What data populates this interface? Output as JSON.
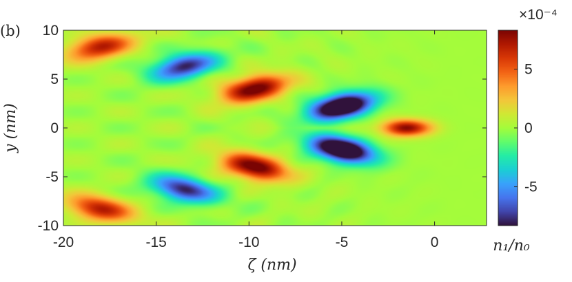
{
  "panel_label": "(b)",
  "colors": {
    "colormap": [
      "#30123b",
      "#4145ab",
      "#4675ed",
      "#39a2fc",
      "#1bcfd4",
      "#24eca6",
      "#61fc6c",
      "#a4fc3b",
      "#d1e834",
      "#f3c63a",
      "#fe9b2d",
      "#f36315",
      "#d93806",
      "#b11901",
      "#7a0403"
    ],
    "axis": "#262626"
  },
  "chart_data": {
    "type": "heatmap",
    "title": "",
    "xlabel": "ζ (nm)",
    "ylabel": "y (nm)",
    "xlim": [
      -20,
      2.8
    ],
    "ylim": [
      -10,
      10
    ],
    "x_ticks": [
      -20,
      -15,
      -10,
      -5,
      0
    ],
    "x_tick_labels": [
      "-20",
      "-15",
      "-10",
      "-5",
      "0"
    ],
    "y_ticks": [
      -10,
      -5,
      0,
      5,
      10
    ],
    "y_tick_labels": [
      "-10",
      "-5",
      "0",
      "5",
      "10"
    ],
    "colorbar": {
      "label": "n₁/n₀",
      "multiplier": "×10⁻⁴",
      "range": [
        -8.3,
        8.3
      ],
      "ticks": [
        -5,
        0,
        5
      ],
      "tick_labels": [
        "-5",
        "0",
        "5"
      ]
    },
    "features": [
      {
        "x": -1.5,
        "y": 0,
        "value": 8.0,
        "kind": "wake-peak"
      },
      {
        "x": -5.0,
        "y": 2.2,
        "value": -6.0,
        "kind": "trough-arm"
      },
      {
        "x": -5.0,
        "y": -2.2,
        "value": -6.0,
        "kind": "trough-arm"
      },
      {
        "x": -9.7,
        "y": 4.0,
        "value": 4.5,
        "kind": "crest-arm"
      },
      {
        "x": -9.7,
        "y": -4.0,
        "value": 4.5,
        "kind": "crest-arm"
      },
      {
        "x": -13.5,
        "y": 6.3,
        "value": -4.0,
        "kind": "trough-arm"
      },
      {
        "x": -13.5,
        "y": -6.3,
        "value": -4.0,
        "kind": "trough-arm"
      },
      {
        "x": -18.0,
        "y": 8.3,
        "value": 3.5,
        "kind": "crest-arm"
      },
      {
        "x": -18.0,
        "y": -8.3,
        "value": 3.5,
        "kind": "crest-arm"
      }
    ]
  }
}
